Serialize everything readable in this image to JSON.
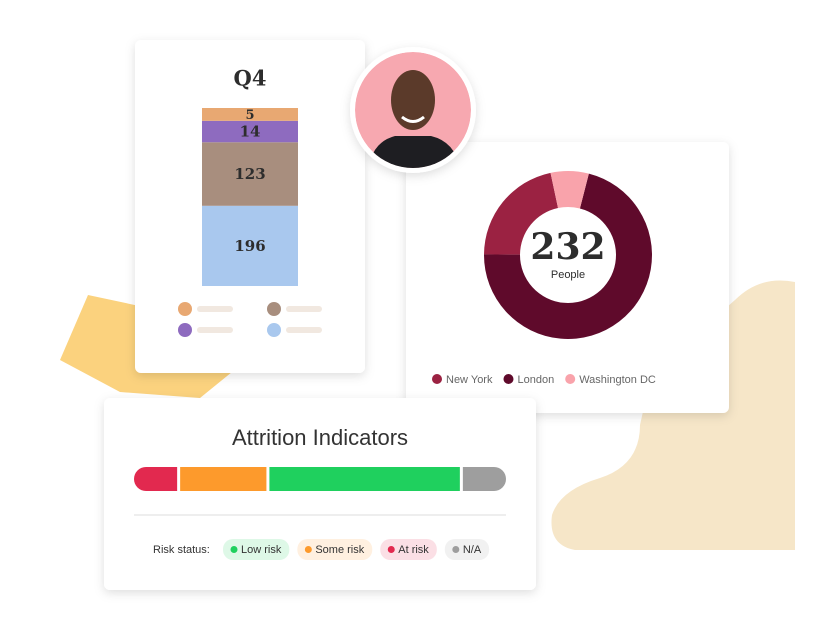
{
  "chart_data": [
    {
      "type": "bar",
      "stacked": true,
      "orientation": "vertical",
      "scale": "sqrt",
      "title": "Q4",
      "series": [
        {
          "color": "#a9c8ee",
          "values": [
            196
          ]
        },
        {
          "color": "#a88e7e",
          "values": [
            123
          ]
        },
        {
          "color": "#8e6bbf",
          "values": [
            14
          ]
        },
        {
          "color": "#e8a872",
          "values": [
            5
          ]
        }
      ]
    },
    {
      "type": "donut",
      "direction": "counterclockwise",
      "start_angle": -12,
      "center_value": 232,
      "center_label": "People",
      "categories": [
        "New York",
        "London",
        "Washington DC"
      ],
      "values": [
        50,
        165,
        17
      ],
      "colors": [
        "#9b2242",
        "#5f0a2b",
        "#f9a3ab"
      ]
    },
    {
      "type": "bar",
      "stacked": true,
      "orientation": "horizontal",
      "title": "Attrition Indicators",
      "legend_title": "Risk status:",
      "stack_order": [
        2,
        1,
        0,
        3
      ],
      "series": [
        {
          "name": "Low risk",
          "color": "#1fd05e",
          "values": [
            52
          ]
        },
        {
          "name": "Some risk",
          "color": "#fd9a2c",
          "values": [
            24
          ]
        },
        {
          "name": "At risk",
          "color": "#e2294f",
          "values": [
            12
          ]
        },
        {
          "name": "N/A",
          "color": "#9e9e9e",
          "values": [
            12
          ]
        }
      ]
    }
  ]
}
